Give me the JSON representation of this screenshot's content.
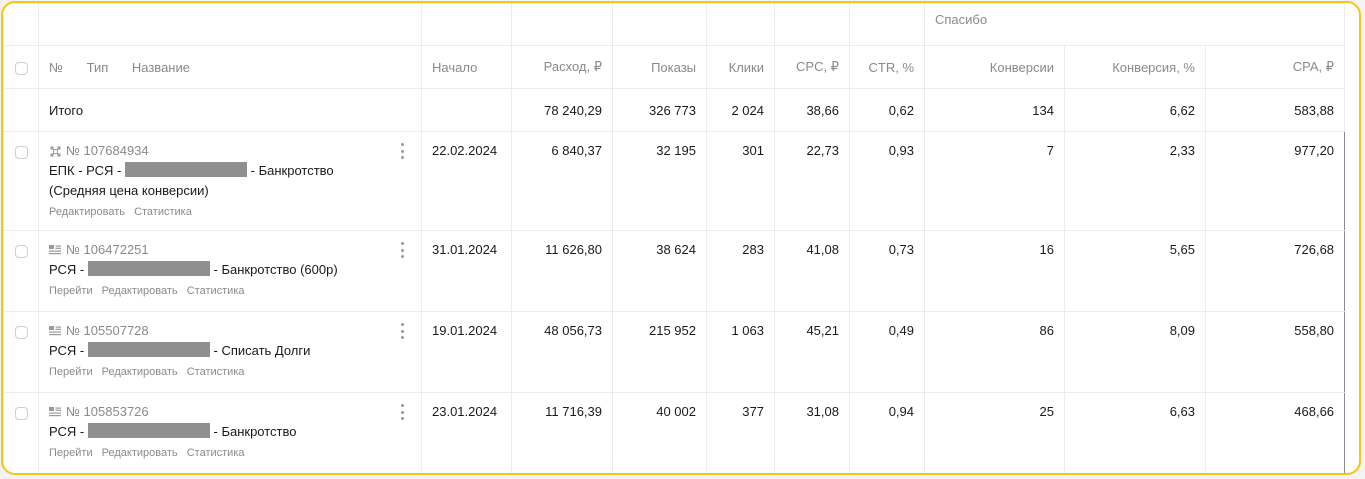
{
  "group_header": {
    "label": "Спасибо"
  },
  "columns": {
    "number": "№",
    "type": "Тип",
    "name": "Название",
    "start": "Начало",
    "spend": "Расход, ₽",
    "impressions": "Показы",
    "clicks": "Клики",
    "cpc": "CPC, ₽",
    "ctr": "CTR, %",
    "conversions": "Конверсии",
    "conversion_rate": "Конверсия, %",
    "cpa": "CPA, ₽"
  },
  "total": {
    "label": "Итого",
    "spend": "78 240,29",
    "impressions": "326 773",
    "clicks": "2 024",
    "cpc": "38,66",
    "ctr": "0,62",
    "conversions": "134",
    "conversion_rate": "6,62",
    "cpa": "583,88"
  },
  "rows": [
    {
      "icon": "unified-campaign-icon",
      "id": "№ 107684934",
      "name_prefix": "ЕПК - РСЯ -",
      "name_suffix": "- Банкротство (Средняя цена конверсии)",
      "links": [
        "Редактировать",
        "Статистика"
      ],
      "start": "22.02.2024",
      "spend": "6 840,37",
      "impressions": "32 195",
      "clicks": "301",
      "cpc": "22,73",
      "ctr": "0,93",
      "conversions": "7",
      "conversion_rate": "2,33",
      "cpa": "977,20"
    },
    {
      "icon": "network-campaign-icon",
      "id": "№ 106472251",
      "name_prefix": "РСЯ -",
      "name_suffix": "- Банкротство (600р)",
      "links": [
        "Перейти",
        "Редактировать",
        "Статистика"
      ],
      "start": "31.01.2024",
      "spend": "11 626,80",
      "impressions": "38 624",
      "clicks": "283",
      "cpc": "41,08",
      "ctr": "0,73",
      "conversions": "16",
      "conversion_rate": "5,65",
      "cpa": "726,68"
    },
    {
      "icon": "network-campaign-icon",
      "id": "№ 105507728",
      "name_prefix": "РСЯ -",
      "name_suffix": "- Списать Долги",
      "links": [
        "Перейти",
        "Редактировать",
        "Статистика"
      ],
      "start": "19.01.2024",
      "spend": "48 056,73",
      "impressions": "215 952",
      "clicks": "1 063",
      "cpc": "45,21",
      "ctr": "0,49",
      "conversions": "86",
      "conversion_rate": "8,09",
      "cpa": "558,80"
    },
    {
      "icon": "network-campaign-icon",
      "id": "№ 105853726",
      "name_prefix": "РСЯ -",
      "name_suffix": "- Банкротство",
      "links": [
        "Перейти",
        "Редактировать",
        "Статистика"
      ],
      "start": "23.01.2024",
      "spend": "11 716,39",
      "impressions": "40 002",
      "clicks": "377",
      "cpc": "31,08",
      "ctr": "0,94",
      "conversions": "25",
      "conversion_rate": "6,63",
      "cpa": "468,66"
    }
  ]
}
